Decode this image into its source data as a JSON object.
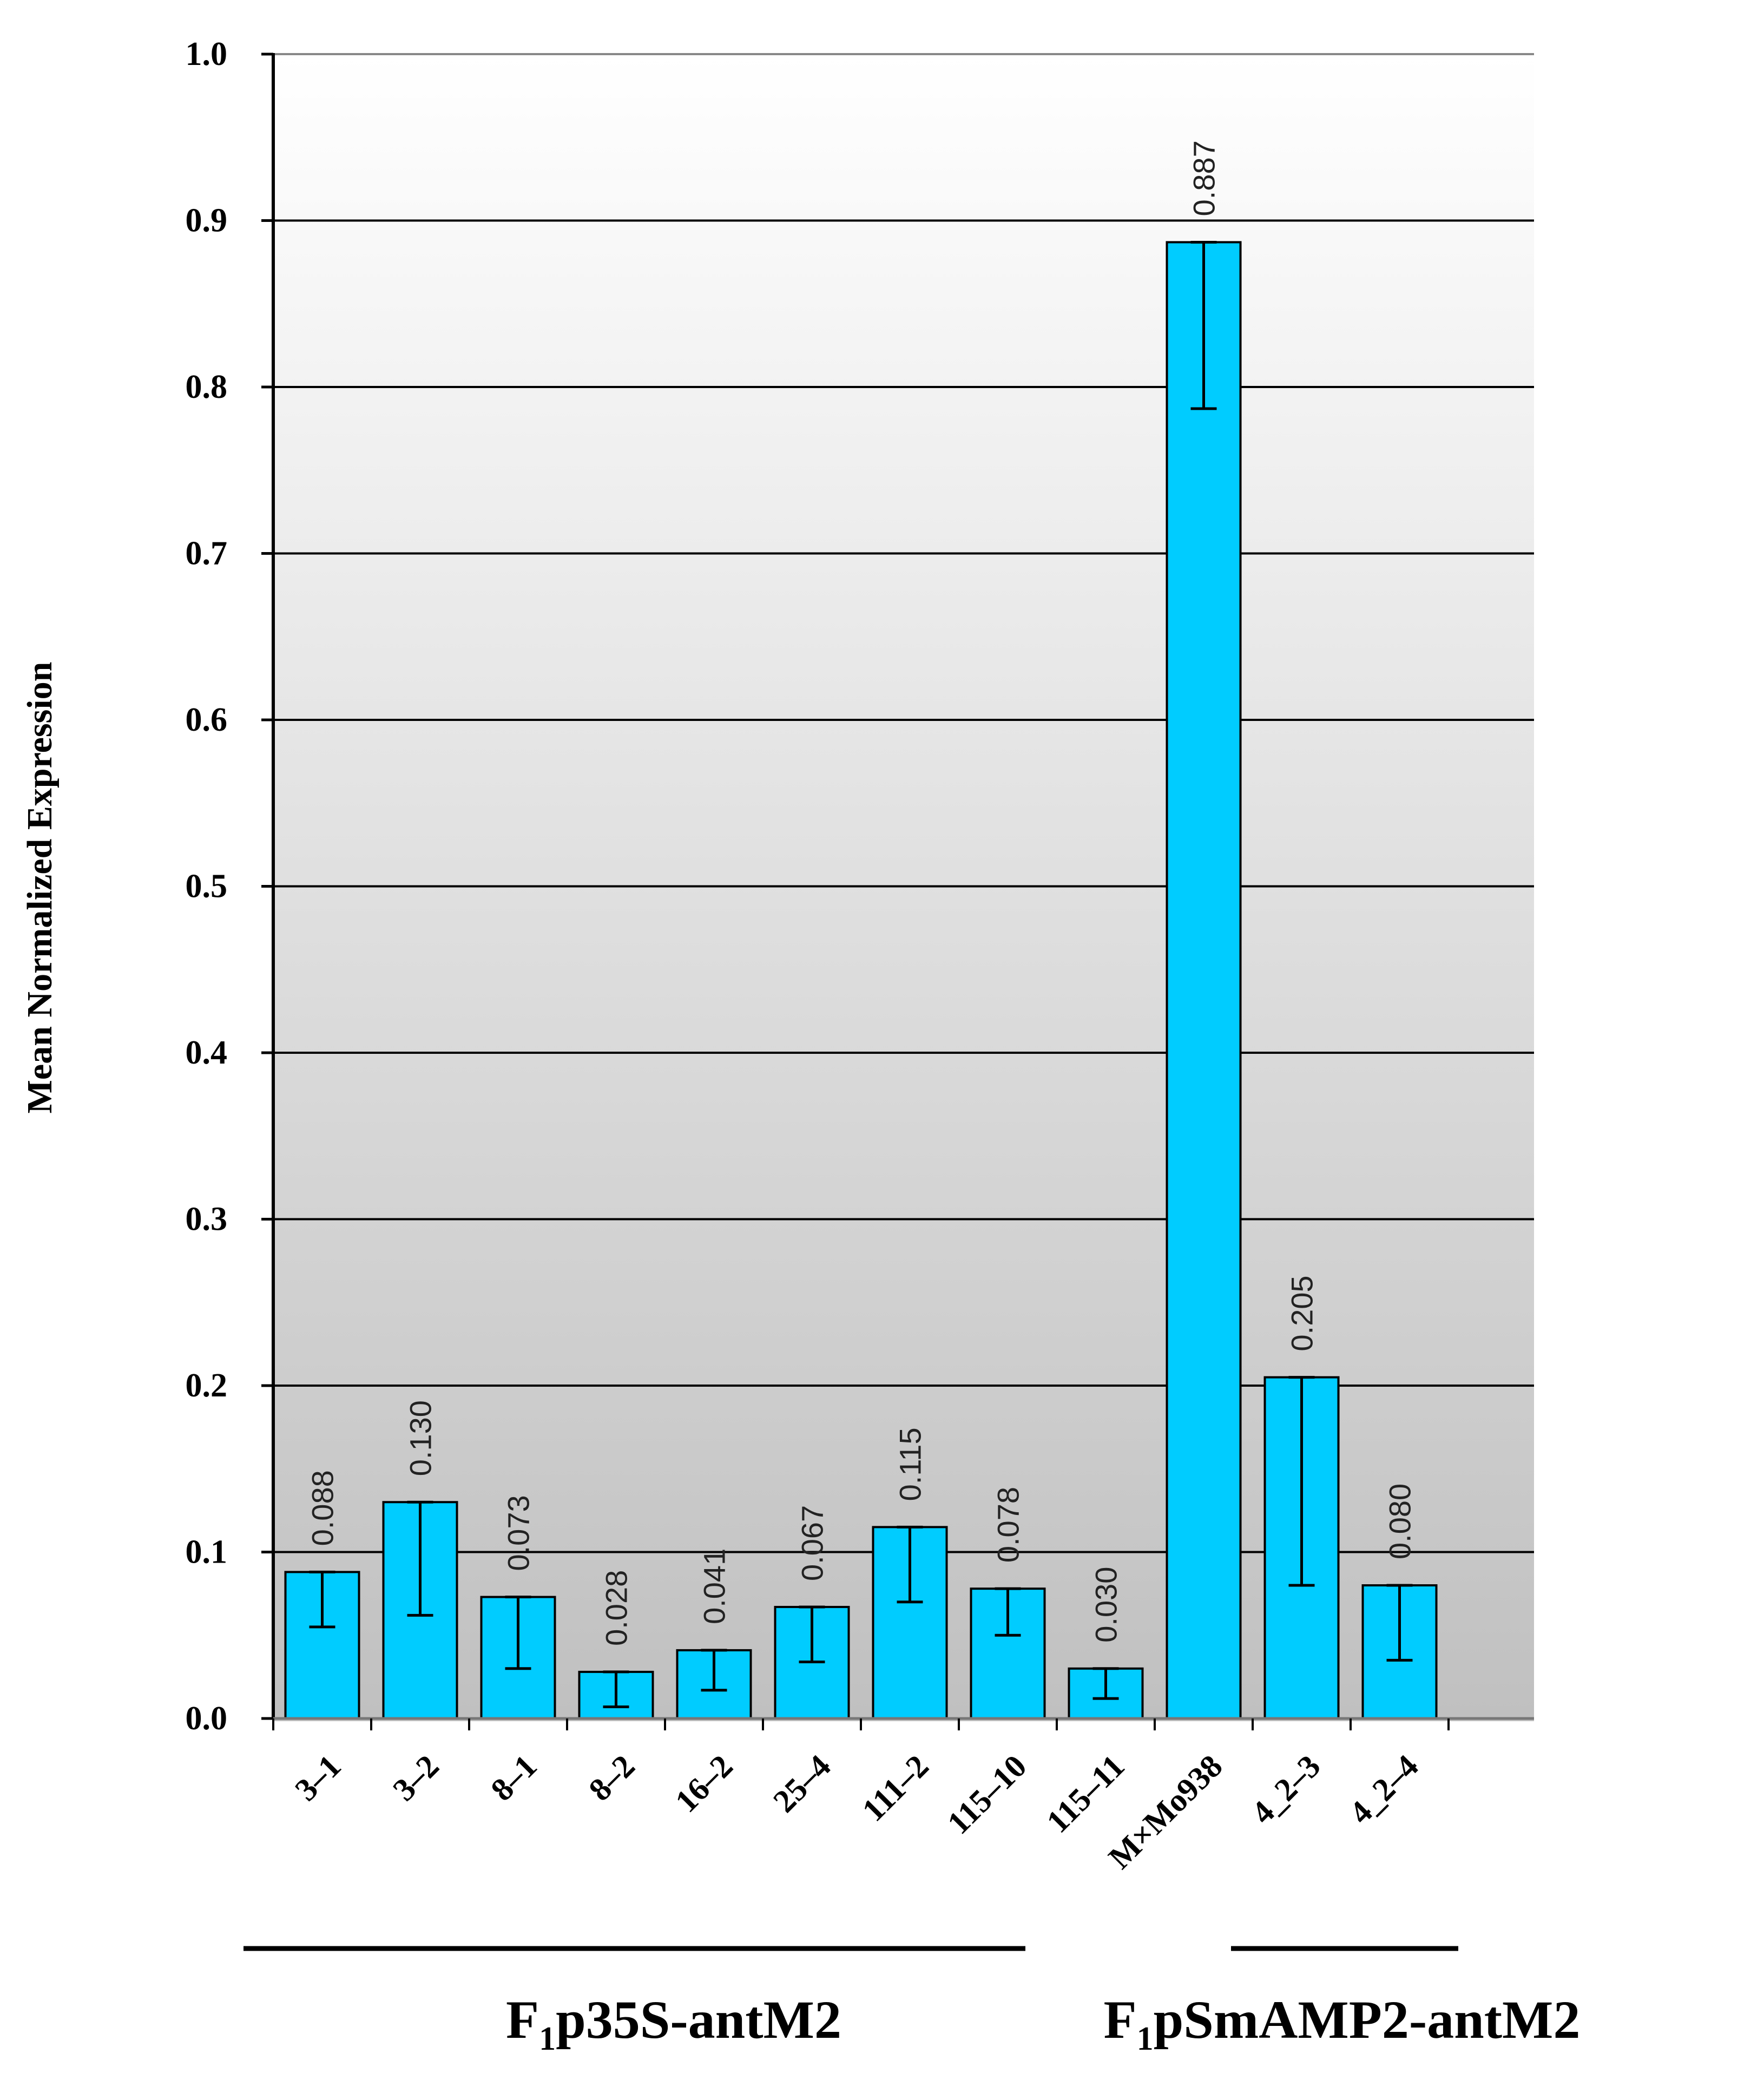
{
  "chart_data": {
    "type": "bar",
    "ylabel": "Mean Normalized Expression",
    "ylim": [
      0,
      1.0
    ],
    "yticks": [
      "0.0",
      "0.1",
      "0.2",
      "0.3",
      "0.4",
      "0.5",
      "0.6",
      "0.7",
      "0.8",
      "0.9",
      "1.0"
    ],
    "grid": true,
    "categories": [
      "3–1",
      "3–2",
      "8–1",
      "8–2",
      "16–2",
      "25–4",
      "111–2",
      "115–10",
      "115–11",
      "M×Mo938",
      "4_2–3",
      "4_2–4"
    ],
    "values": [
      0.088,
      0.13,
      0.073,
      0.028,
      0.041,
      0.067,
      0.115,
      0.078,
      0.03,
      0.887,
      0.205,
      0.08
    ],
    "value_labels": [
      "0.088",
      "0.130",
      "0.073",
      "0.028",
      "0.041",
      "0.067",
      "0.115",
      "0.078",
      "0.030",
      "0.887",
      "0.205",
      "0.080"
    ],
    "error_low": [
      0.055,
      0.062,
      0.03,
      0.007,
      0.017,
      0.034,
      0.07,
      0.05,
      0.012,
      0.787,
      0.08,
      0.035
    ],
    "error_high": [
      0.088,
      0.13,
      0.073,
      0.028,
      0.041,
      0.067,
      0.115,
      0.078,
      0.03,
      0.887,
      0.205,
      0.08
    ],
    "groups": [
      {
        "prefix": "F",
        "subscript": "1",
        "suffix": "p35S-antM2",
        "categories": [
          "3–1",
          "3–2",
          "8–1",
          "8–2",
          "16–2",
          "25–4",
          "111–2",
          "115–10",
          "115–11"
        ]
      },
      {
        "prefix": "F",
        "subscript": "1",
        "suffix": "pSmAMP2-antM2",
        "categories": [
          "4_2–3",
          "4_2–4"
        ]
      }
    ],
    "colors": {
      "bar": "#00ccff",
      "bar_edge": "#000000",
      "plot_bg_top": "#ffffff",
      "plot_bg_bottom": "#c0c0c0",
      "grid": "#000000"
    }
  }
}
